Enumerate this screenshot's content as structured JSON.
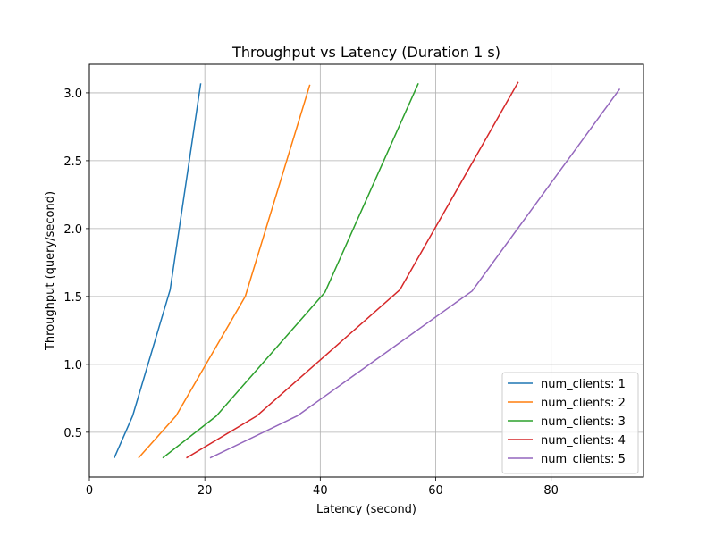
{
  "chart_data": {
    "type": "line",
    "title": "Throughput vs Latency (Duration 1 s)",
    "xlabel": "Latency (second)",
    "ylabel": "Throughput (query/second)",
    "xlim": [
      0,
      96
    ],
    "ylim": [
      0.17,
      3.21
    ],
    "xticks": [
      0,
      20,
      40,
      60,
      80
    ],
    "yticks": [
      0.5,
      1.0,
      1.5,
      2.0,
      2.5,
      3.0
    ],
    "xtick_labels": [
      "0",
      "20",
      "40",
      "60",
      "80"
    ],
    "ytick_labels": [
      "0.5",
      "1.0",
      "1.5",
      "2.0",
      "2.5",
      "3.0"
    ],
    "grid": true,
    "legend_position": "lower-right",
    "series": [
      {
        "name": "num_clients: 1",
        "color": "#1f77b4",
        "x": [
          4.3,
          7.5,
          14.0,
          19.3
        ],
        "y": [
          0.31,
          0.62,
          1.55,
          3.07
        ]
      },
      {
        "name": "num_clients: 2",
        "color": "#ff7f0e",
        "x": [
          8.5,
          15.0,
          27.0,
          38.2
        ],
        "y": [
          0.31,
          0.62,
          1.5,
          3.06
        ]
      },
      {
        "name": "num_clients: 3",
        "color": "#2ca02c",
        "x": [
          12.7,
          22.0,
          40.8,
          57.0
        ],
        "y": [
          0.31,
          0.62,
          1.53,
          3.07
        ]
      },
      {
        "name": "num_clients: 4",
        "color": "#d62728",
        "x": [
          16.8,
          29.0,
          53.8,
          74.3
        ],
        "y": [
          0.31,
          0.62,
          1.55,
          3.08
        ]
      },
      {
        "name": "num_clients: 5",
        "color": "#9467bd",
        "x": [
          20.9,
          36.0,
          66.3,
          91.9
        ],
        "y": [
          0.31,
          0.62,
          1.54,
          3.03
        ]
      }
    ]
  }
}
